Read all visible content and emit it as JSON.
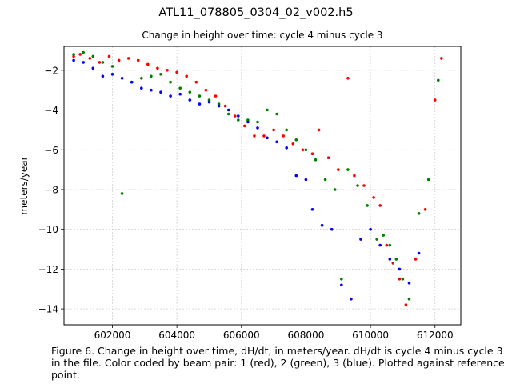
{
  "figure": {
    "suptitle": "ATL11_078805_0304_02_v002.h5",
    "caption": "Figure 6. Change in height over time, dH/dt, in meters/year. dH/dt is cycle 4 minus cycle 3 in the file. Color coded by beam pair: 1 (red), 2 (green), 3 (blue). Plotted against reference point."
  },
  "chart_data": {
    "type": "scatter",
    "title": "Change in height over time: cycle 4 minus cycle 3",
    "xlabel": "",
    "ylabel": "meters/year",
    "xlim": [
      600500,
      612800
    ],
    "ylim": [
      -14.8,
      -0.8
    ],
    "xticks": [
      602000,
      604000,
      606000,
      608000,
      610000,
      612000
    ],
    "yticks": [
      -14,
      -12,
      -10,
      -8,
      -6,
      -4,
      -2
    ],
    "grid": true,
    "legend": "none",
    "series": [
      {
        "color": "#ff0000",
        "points": [
          [
            600800,
            -1.3
          ],
          [
            601000,
            -1.2
          ],
          [
            601300,
            -1.4
          ],
          [
            601600,
            -1.6
          ],
          [
            601900,
            -1.3
          ],
          [
            602200,
            -1.5
          ],
          [
            602500,
            -1.4
          ],
          [
            602800,
            -1.5
          ],
          [
            603100,
            -1.7
          ],
          [
            603400,
            -1.9
          ],
          [
            603700,
            -2.0
          ],
          [
            604000,
            -2.1
          ],
          [
            604300,
            -2.3
          ],
          [
            604600,
            -2.6
          ],
          [
            604900,
            -3.0
          ],
          [
            605200,
            -3.3
          ],
          [
            605500,
            -3.8
          ],
          [
            605800,
            -4.3
          ],
          [
            606100,
            -4.8
          ],
          [
            606400,
            -5.3
          ],
          [
            606700,
            -5.3
          ],
          [
            607000,
            -5.0
          ],
          [
            607300,
            -5.3
          ],
          [
            607600,
            -5.7
          ],
          [
            607900,
            -6.0
          ],
          [
            608200,
            -6.2
          ],
          [
            608400,
            -5.0
          ],
          [
            608700,
            -6.4
          ],
          [
            609000,
            -7.0
          ],
          [
            609300,
            -2.4
          ],
          [
            609500,
            -7.3
          ],
          [
            609800,
            -7.8
          ],
          [
            610100,
            -8.4
          ],
          [
            610300,
            -8.8
          ],
          [
            610500,
            -10.8
          ],
          [
            610700,
            -11.7
          ],
          [
            610900,
            -12.5
          ],
          [
            611100,
            -13.8
          ],
          [
            611400,
            -11.5
          ],
          [
            611700,
            -9.0
          ],
          [
            612000,
            -3.5
          ],
          [
            612200,
            -1.4
          ]
        ]
      },
      {
        "color": "#008000",
        "points": [
          [
            600800,
            -1.2
          ],
          [
            601100,
            -1.1
          ],
          [
            601400,
            -1.3
          ],
          [
            601700,
            -1.6
          ],
          [
            602000,
            -1.8
          ],
          [
            602300,
            -8.2
          ],
          [
            602600,
            -2.6
          ],
          [
            602900,
            -2.4
          ],
          [
            603200,
            -2.3
          ],
          [
            603500,
            -2.2
          ],
          [
            603800,
            -2.6
          ],
          [
            604100,
            -2.9
          ],
          [
            604400,
            -3.1
          ],
          [
            604700,
            -3.3
          ],
          [
            605000,
            -3.5
          ],
          [
            605300,
            -3.7
          ],
          [
            605600,
            -4.2
          ],
          [
            605900,
            -4.5
          ],
          [
            606200,
            -4.5
          ],
          [
            606500,
            -4.6
          ],
          [
            606800,
            -4.0
          ],
          [
            607100,
            -4.2
          ],
          [
            607400,
            -5.0
          ],
          [
            607700,
            -5.5
          ],
          [
            608000,
            -6.0
          ],
          [
            608300,
            -6.5
          ],
          [
            608600,
            -7.5
          ],
          [
            608900,
            -8.0
          ],
          [
            609100,
            -12.5
          ],
          [
            609300,
            -7.0
          ],
          [
            609600,
            -7.8
          ],
          [
            609900,
            -8.8
          ],
          [
            610200,
            -10.5
          ],
          [
            610400,
            -10.3
          ],
          [
            610600,
            -10.8
          ],
          [
            610800,
            -11.5
          ],
          [
            611000,
            -12.5
          ],
          [
            611200,
            -13.5
          ],
          [
            611500,
            -9.2
          ],
          [
            611800,
            -7.5
          ],
          [
            612100,
            -2.5
          ]
        ]
      },
      {
        "color": "#0000ff",
        "points": [
          [
            600800,
            -1.5
          ],
          [
            601100,
            -1.6
          ],
          [
            601400,
            -1.9
          ],
          [
            601700,
            -2.3
          ],
          [
            602000,
            -2.2
          ],
          [
            602300,
            -2.4
          ],
          [
            602600,
            -2.6
          ],
          [
            602900,
            -2.9
          ],
          [
            603200,
            -3.0
          ],
          [
            603500,
            -3.1
          ],
          [
            603800,
            -3.3
          ],
          [
            604100,
            -3.2
          ],
          [
            604400,
            -3.5
          ],
          [
            604700,
            -3.7
          ],
          [
            605000,
            -3.6
          ],
          [
            605300,
            -3.8
          ],
          [
            605600,
            -4.0
          ],
          [
            605900,
            -4.3
          ],
          [
            606200,
            -4.6
          ],
          [
            606500,
            -4.9
          ],
          [
            606800,
            -5.4
          ],
          [
            607100,
            -5.6
          ],
          [
            607400,
            -5.9
          ],
          [
            607700,
            -7.3
          ],
          [
            608000,
            -7.5
          ],
          [
            608200,
            -9.0
          ],
          [
            608500,
            -9.8
          ],
          [
            608800,
            -10.0
          ],
          [
            609100,
            -12.8
          ],
          [
            609400,
            -13.5
          ],
          [
            609700,
            -10.5
          ],
          [
            610000,
            -10.0
          ],
          [
            610300,
            -10.8
          ],
          [
            610600,
            -11.5
          ],
          [
            610900,
            -12.0
          ],
          [
            611200,
            -12.7
          ],
          [
            611500,
            -11.2
          ]
        ]
      }
    ]
  }
}
